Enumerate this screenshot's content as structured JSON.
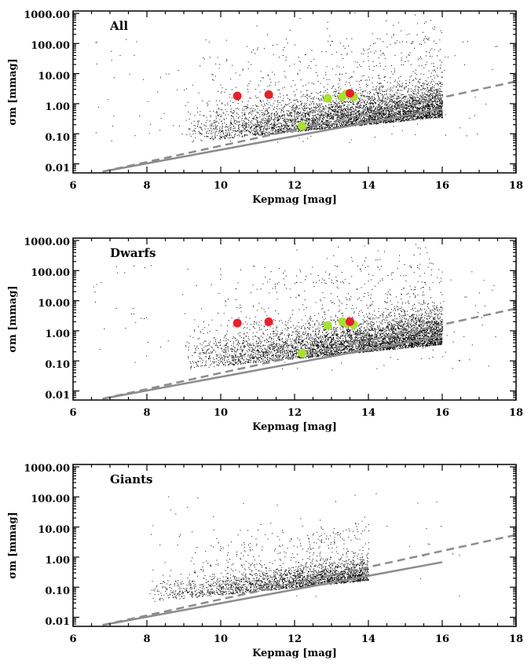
{
  "chart_data": [
    {
      "type": "scatter",
      "title": "All",
      "xlabel": "Kepmag [mag]",
      "ylabel": "σm [mmag]",
      "xlim": [
        6,
        18
      ],
      "ylim": [
        0.005,
        1200
      ],
      "yscale": "log",
      "x_ticks": [
        "6",
        "8",
        "10",
        "12",
        "14",
        "16",
        "18"
      ],
      "y_ticks": [
        "1000.00",
        "100.00",
        "10.00",
        "1.00",
        "0.10",
        "0.01"
      ],
      "population": {
        "mag_min": 9.0,
        "mag_max": 16.0,
        "floor_offset": 1.0,
        "ceiling_dex": 2.6
      },
      "highlight_red": [
        {
          "x": 10.45,
          "y": 1.8
        },
        {
          "x": 11.3,
          "y": 2.0
        },
        {
          "x": 13.5,
          "y": 2.2
        }
      ],
      "highlight_green": [
        {
          "x": 12.2,
          "y": 0.18
        },
        {
          "x": 12.9,
          "y": 1.5
        },
        {
          "x": 13.3,
          "y": 1.7
        },
        {
          "x": 13.4,
          "y": 2.1
        },
        {
          "x": 13.6,
          "y": 1.7
        }
      ],
      "noise_limit_dashed": [
        {
          "x": 6.8,
          "y": 0.0055
        },
        {
          "x": 18,
          "y": 5.5
        }
      ],
      "noise_limit_solid": [
        {
          "x": 6.8,
          "y": 0.0055
        },
        {
          "x": 16,
          "y": 0.68
        }
      ]
    },
    {
      "type": "scatter",
      "title": "Dwarfs",
      "xlabel": "Kepmag [mag]",
      "ylabel": "σm [mmag]",
      "xlim": [
        6,
        18
      ],
      "ylim": [
        0.005,
        1200
      ],
      "yscale": "log",
      "x_ticks": [
        "6",
        "8",
        "10",
        "12",
        "14",
        "16",
        "18"
      ],
      "y_ticks": [
        "1000.00",
        "100.00",
        "10.00",
        "1.00",
        "0.10",
        "0.01"
      ],
      "population": {
        "mag_min": 9.0,
        "mag_max": 16.0,
        "floor_offset": 1.0,
        "ceiling_dex": 2.6
      },
      "highlight_red": [
        {
          "x": 10.45,
          "y": 1.8
        },
        {
          "x": 11.3,
          "y": 2.0
        },
        {
          "x": 13.5,
          "y": 2.0
        }
      ],
      "highlight_green": [
        {
          "x": 12.2,
          "y": 0.18
        },
        {
          "x": 12.9,
          "y": 1.5
        },
        {
          "x": 13.3,
          "y": 2.0
        },
        {
          "x": 13.4,
          "y": 1.8
        },
        {
          "x": 13.6,
          "y": 1.6
        }
      ],
      "noise_limit_dashed": [
        {
          "x": 6.8,
          "y": 0.0055
        },
        {
          "x": 18,
          "y": 5.5
        }
      ],
      "noise_limit_solid": [
        {
          "x": 6.8,
          "y": 0.0055
        },
        {
          "x": 16,
          "y": 0.68
        }
      ]
    },
    {
      "type": "scatter",
      "title": "Giants",
      "xlabel": "Kepmag [mag]",
      "ylabel": "σm [mmag]",
      "xlim": [
        6,
        18
      ],
      "ylim": [
        0.005,
        1200
      ],
      "yscale": "log",
      "x_ticks": [
        "6",
        "8",
        "10",
        "12",
        "14",
        "16",
        "18"
      ],
      "y_ticks": [
        "1000.00",
        "100.00",
        "10.00",
        "1.00",
        "0.10",
        "0.01"
      ],
      "population": {
        "mag_min": 8.0,
        "mag_max": 14.0,
        "floor_offset": 0.9,
        "ceiling_dex": 0.7
      },
      "highlight_red": [],
      "highlight_green": [],
      "noise_limit_dashed": [
        {
          "x": 6.8,
          "y": 0.0055
        },
        {
          "x": 18,
          "y": 5.5
        }
      ],
      "noise_limit_solid": [
        {
          "x": 6.8,
          "y": 0.0055
        },
        {
          "x": 16,
          "y": 0.68
        }
      ]
    }
  ],
  "colors": {
    "axis": "#000000",
    "points": "#000000",
    "highlight_red": "#e8202a",
    "highlight_green": "#a6e22e",
    "noise_limit": "#8c8c8c"
  }
}
